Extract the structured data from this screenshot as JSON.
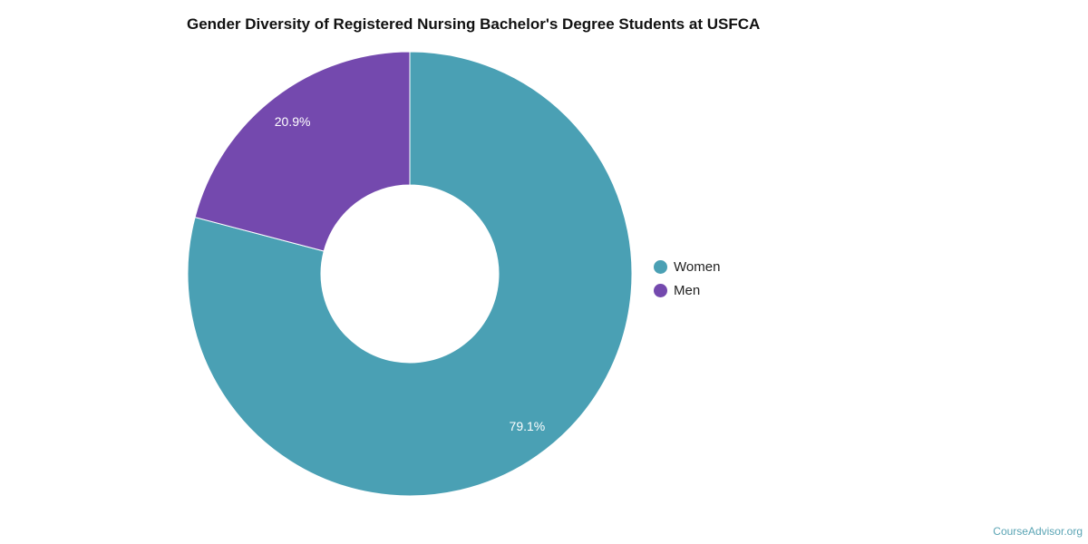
{
  "chart_data": {
    "type": "pie",
    "variant": "donut",
    "title": "Gender Diversity of Registered Nursing Bachelor's Degree Students at USFCA",
    "categories": [
      "Women",
      "Men"
    ],
    "values": [
      79.1,
      20.9
    ],
    "data_labels": [
      "79.1%",
      "20.9%"
    ],
    "colors": [
      "#4aa0b4",
      "#7449ae"
    ],
    "legend_position": "right"
  },
  "credit": "CourseAdvisor.org"
}
